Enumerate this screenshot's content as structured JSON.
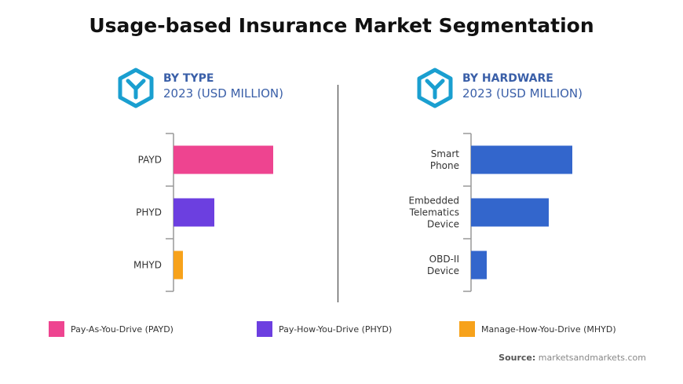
{
  "title": "Usage-based Insurance Market Segmentation",
  "panels": [
    {
      "heading": "BY TYPE",
      "subheading": "2023 (USD MILLION)",
      "icon": "hexagon-y-icon"
    },
    {
      "heading": "BY HARDWARE",
      "subheading": "2023 (USD MILLION)",
      "icon": "hexagon-y-icon"
    }
  ],
  "chart_data": [
    {
      "type": "bar",
      "orientation": "horizontal",
      "title": "BY TYPE",
      "categories": [
        "PAYD",
        "PHYD",
        "MHYD"
      ],
      "values": [
        127,
        52,
        12
      ],
      "colors": [
        "#ee4490",
        "#6c3fe0",
        "#f7a21b"
      ],
      "note_values": "relative magnitudes, no axis printed",
      "grid": false
    },
    {
      "type": "bar",
      "orientation": "horizontal",
      "title": "BY HARDWARE",
      "categories": [
        "Smart Phone",
        "Embedded Telematics Device",
        "OBD-II Device"
      ],
      "values": [
        129,
        99,
        20
      ],
      "colors": [
        "#3366cc",
        "#3366cc",
        "#3366cc"
      ],
      "grid": false
    }
  ],
  "legend": [
    {
      "label": "Pay-As-You-Drive (PAYD)",
      "color": "#ee4490"
    },
    {
      "label": "Pay-How-You-Drive (PHYD)",
      "color": "#6c3fe0"
    },
    {
      "label": "Manage-How-You-Drive (MHYD)",
      "color": "#f7a21b"
    }
  ],
  "source": {
    "label": "Source:",
    "text": "marketsandmarkets.com"
  },
  "icon_color": "#1a9fd0"
}
